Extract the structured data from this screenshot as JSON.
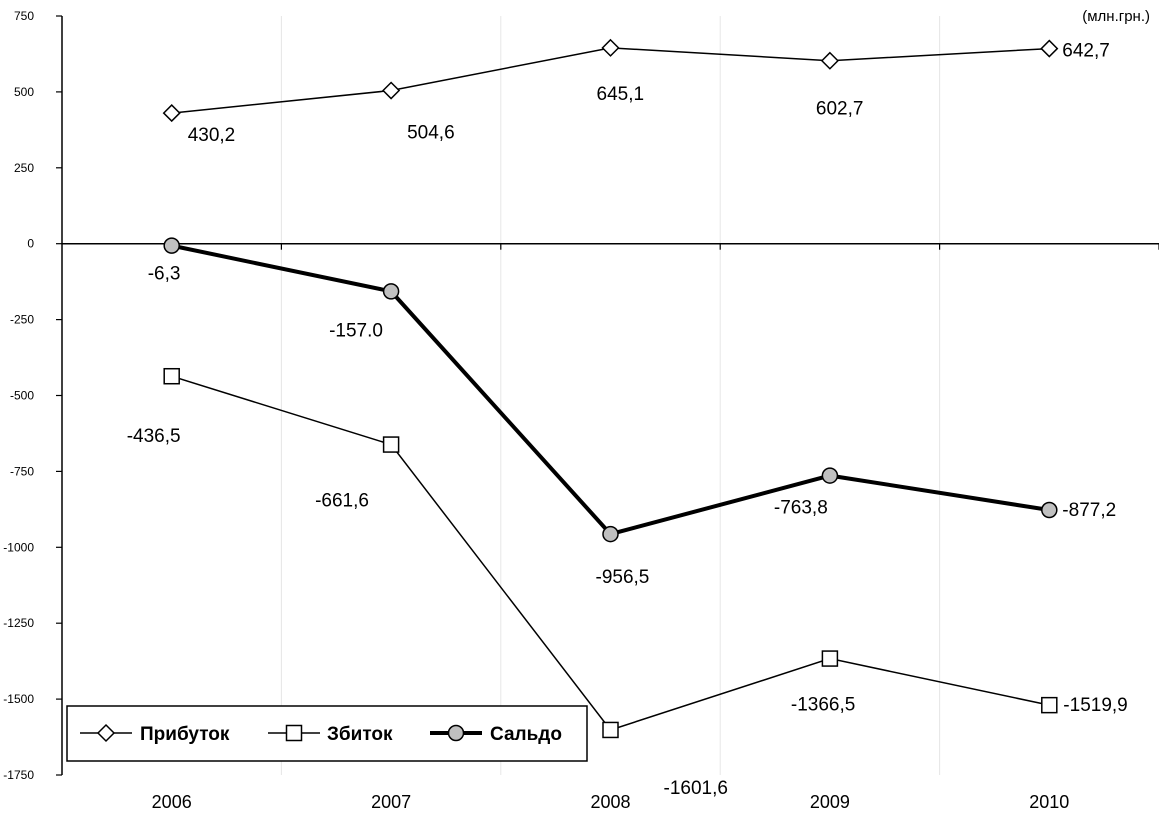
{
  "chart_data": {
    "type": "line",
    "unit_label": "(млн.грн.)",
    "x": [
      "2006",
      "2007",
      "2008",
      "2009",
      "2010"
    ],
    "ylim": [
      -1750,
      750
    ],
    "yticks": [
      750,
      500,
      250,
      0,
      -250,
      -500,
      -750,
      -1000,
      -1250,
      -1500,
      -1750
    ],
    "grid": "vertical",
    "legend_position": "bottom-left",
    "series": [
      {
        "name": "Прибуток",
        "marker": "diamond",
        "color": "#000000",
        "values": [
          430.2,
          504.6,
          645.1,
          602.7,
          642.7
        ],
        "labels": [
          "430,2",
          "504,6",
          "645,1",
          "602,7",
          "642,7"
        ]
      },
      {
        "name": "Збиток",
        "marker": "square",
        "color": "#000000",
        "values": [
          -436.5,
          -661.6,
          -1601.6,
          -1366.5,
          -1519.9
        ],
        "labels": [
          "-436,5",
          "-661,6",
          "-1601,6",
          "-1366,5",
          "-1519,9"
        ]
      },
      {
        "name": "Сальдо",
        "marker": "circle",
        "color": "#000000",
        "fill": "#c0c0c0",
        "values": [
          -6.3,
          -157.0,
          -956.5,
          -763.8,
          -877.2
        ],
        "labels": [
          "-6,3",
          "-157.0",
          "-956,5",
          "-763,8",
          "-877,2"
        ]
      }
    ]
  }
}
